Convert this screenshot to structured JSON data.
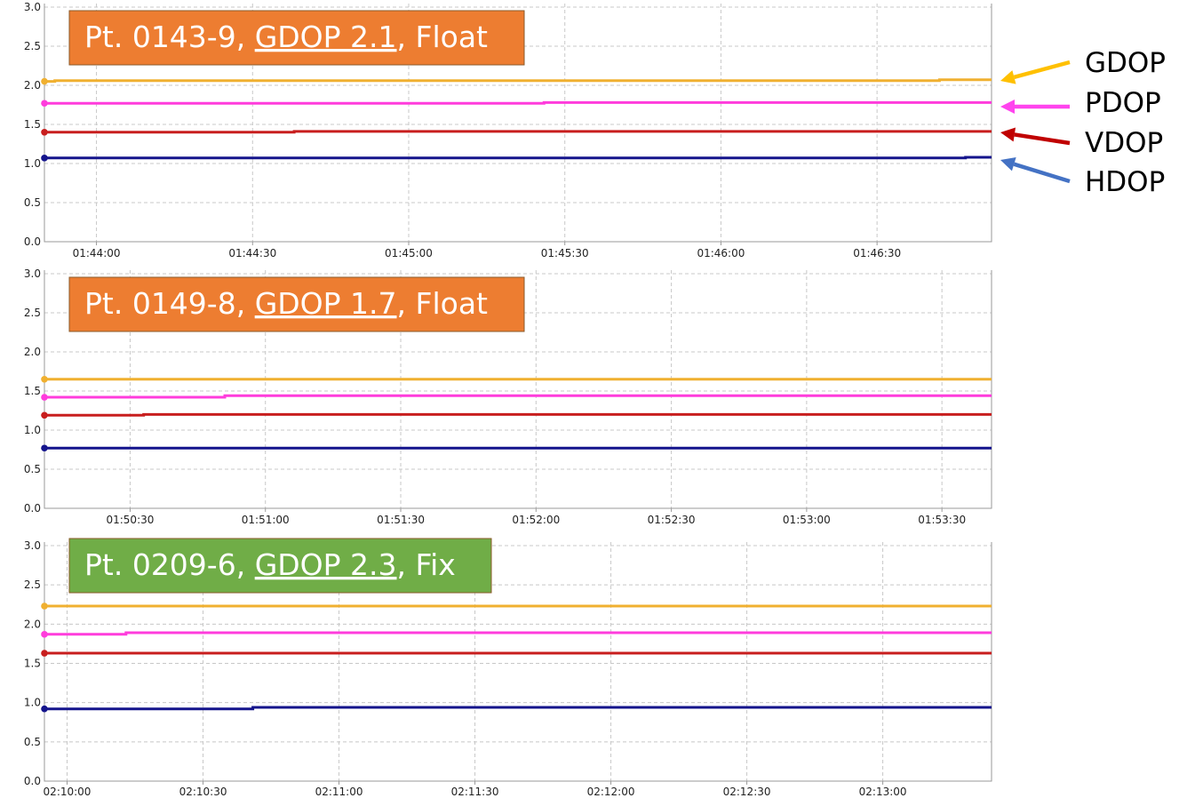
{
  "colors": {
    "GDOP": "#f0b030",
    "PDOP": "#ff3cdc",
    "VDOP": "#c81e1e",
    "HDOP": "#14148c",
    "legend_arrow_GDOP": "#ffc000",
    "legend_arrow_PDOP": "#ff44ee",
    "legend_arrow_VDOP": "#c00000",
    "legend_arrow_HDOP": "#4472c4",
    "banner_float": "#ed7d31",
    "banner_fix": "#70ad47",
    "grid": "#c8c8c8",
    "axis": "#9a9a9a"
  },
  "legend": [
    {
      "name": "GDOP",
      "color_key": "legend_arrow_GDOP"
    },
    {
      "name": "PDOP",
      "color_key": "legend_arrow_PDOP"
    },
    {
      "name": "VDOP",
      "color_key": "legend_arrow_VDOP"
    },
    {
      "name": "HDOP",
      "color_key": "legend_arrow_HDOP"
    }
  ],
  "chart_data": [
    {
      "type": "line",
      "banner": {
        "prefix": "Pt. 0143-9, ",
        "gdop": "GDOP 2.1",
        "suffix": ", Float",
        "color_key": "banner_float"
      },
      "xlabels": [
        "01:44:00",
        "01:44:30",
        "01:45:00",
        "01:45:30",
        "01:46:00",
        "01:46:30"
      ],
      "yticks": [
        "0.0",
        "0.5",
        "1.0",
        "1.5",
        "2.0",
        "2.5",
        "3.0"
      ],
      "ylim": [
        0,
        3.0
      ],
      "grid": true,
      "x_range_s": [
        -10,
        172
      ],
      "x_tick_s": [
        0,
        30,
        60,
        90,
        120,
        150
      ],
      "series": [
        {
          "name": "GDOP",
          "values": [
            [
              -10,
              2.05
            ],
            [
              -8,
              2.05
            ],
            [
              -8,
              2.06
            ],
            [
              162,
              2.06
            ],
            [
              162,
              2.07
            ],
            [
              172,
              2.07
            ]
          ]
        },
        {
          "name": "PDOP",
          "values": [
            [
              -10,
              1.77
            ],
            [
              86,
              1.77
            ],
            [
              86,
              1.78
            ],
            [
              172,
              1.78
            ]
          ]
        },
        {
          "name": "VDOP",
          "values": [
            [
              -10,
              1.4
            ],
            [
              38,
              1.4
            ],
            [
              38,
              1.41
            ],
            [
              172,
              1.41
            ]
          ]
        },
        {
          "name": "HDOP",
          "values": [
            [
              -10,
              1.07
            ],
            [
              167,
              1.07
            ],
            [
              167,
              1.08
            ],
            [
              172,
              1.08
            ]
          ]
        }
      ]
    },
    {
      "type": "line",
      "banner": {
        "prefix": "Pt. 0149-8, ",
        "gdop": "GDOP 1.7",
        "suffix": ", Float",
        "color_key": "banner_float"
      },
      "xlabels": [
        "01:50:30",
        "01:51:00",
        "01:51:30",
        "01:52:00",
        "01:52:30",
        "01:53:00",
        "01:53:30"
      ],
      "yticks": [
        "0.0",
        "0.5",
        "1.0",
        "1.5",
        "2.0",
        "2.5",
        "3.0"
      ],
      "ylim": [
        0,
        3.0
      ],
      "grid": true,
      "x_range_s": [
        -19,
        191
      ],
      "x_tick_s": [
        0,
        30,
        60,
        90,
        120,
        150,
        180
      ],
      "series": [
        {
          "name": "GDOP",
          "values": [
            [
              -19,
              1.65
            ],
            [
              191,
              1.65
            ]
          ]
        },
        {
          "name": "PDOP",
          "values": [
            [
              -19,
              1.42
            ],
            [
              21,
              1.42
            ],
            [
              21,
              1.44
            ],
            [
              191,
              1.44
            ]
          ]
        },
        {
          "name": "VDOP",
          "values": [
            [
              -19,
              1.19
            ],
            [
              3,
              1.19
            ],
            [
              3,
              1.2
            ],
            [
              191,
              1.2
            ]
          ]
        },
        {
          "name": "HDOP",
          "values": [
            [
              -19,
              0.77
            ],
            [
              191,
              0.77
            ]
          ]
        }
      ]
    },
    {
      "type": "line",
      "banner": {
        "prefix": "Pt. 0209-6, ",
        "gdop": "GDOP 2.3",
        "suffix": ", Fix",
        "color_key": "banner_fix"
      },
      "xlabels": [
        "02:10:00",
        "02:10:30",
        "02:11:00",
        "02:11:30",
        "02:12:00",
        "02:12:30",
        "02:13:00"
      ],
      "yticks": [
        "0.0",
        "0.5",
        "1.0",
        "1.5",
        "2.0",
        "2.5",
        "3.0"
      ],
      "ylim": [
        0,
        3.0
      ],
      "grid": true,
      "x_range_s": [
        -5,
        204
      ],
      "x_tick_s": [
        0,
        30,
        60,
        90,
        120,
        150,
        180
      ],
      "series": [
        {
          "name": "GDOP",
          "values": [
            [
              -5,
              2.23
            ],
            [
              204,
              2.23
            ]
          ]
        },
        {
          "name": "PDOP",
          "values": [
            [
              -5,
              1.87
            ],
            [
              13,
              1.87
            ],
            [
              13,
              1.89
            ],
            [
              204,
              1.89
            ]
          ]
        },
        {
          "name": "VDOP",
          "values": [
            [
              -5,
              1.63
            ],
            [
              204,
              1.63
            ]
          ]
        },
        {
          "name": "HDOP",
          "values": [
            [
              -5,
              0.92
            ],
            [
              41,
              0.92
            ],
            [
              41,
              0.94
            ],
            [
              204,
              0.94
            ]
          ]
        }
      ]
    }
  ]
}
